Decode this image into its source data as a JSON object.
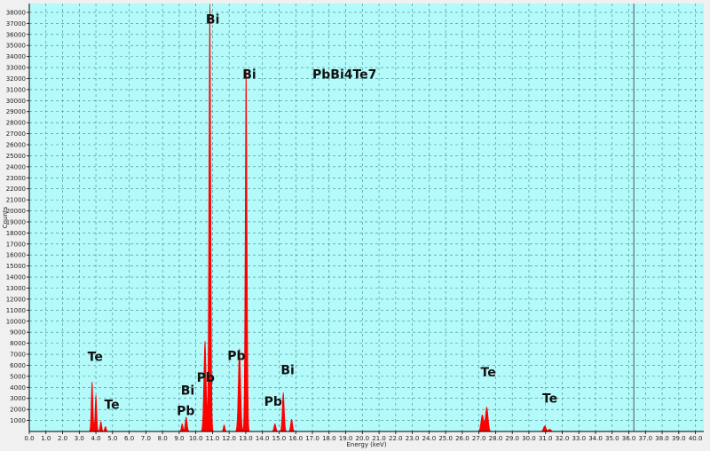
{
  "chart_data": {
    "type": "area",
    "title": "PbBi4Te7",
    "xlabel": "Energy (keV)",
    "ylabel": "Counts",
    "xlim": [
      0,
      40.5
    ],
    "ylim": [
      0,
      38800
    ],
    "grid": true,
    "colors": {
      "plot_bg": "#b4fafa",
      "grid": "#3a8a8a",
      "fill": "#ff0000",
      "outer_bg": "#f0f0f0",
      "cursor": "#555555"
    },
    "x_ticks": [
      "0.0",
      "1.0",
      "2.0",
      "3.0",
      "4.0",
      "5.0",
      "6.0",
      "7.0",
      "8.0",
      "9.0",
      "10.0",
      "11.0",
      "12.0",
      "13.0",
      "14.0",
      "15.0",
      "16.0",
      "17.0",
      "18.0",
      "19.0",
      "20.0",
      "21.0",
      "22.0",
      "23.0",
      "24.0",
      "25.0",
      "26.0",
      "27.0",
      "28.0",
      "29.0",
      "30.0",
      "31.0",
      "32.0",
      "33.0",
      "34.0",
      "35.0",
      "36.0",
      "37.0",
      "38.0",
      "39.0",
      "40.0"
    ],
    "y_ticks": [
      "1000",
      "2000",
      "3000",
      "4000",
      "5000",
      "6000",
      "7000",
      "8000",
      "9000",
      "10000",
      "11000",
      "12000",
      "13000",
      "14000",
      "15000",
      "16000",
      "17000",
      "18000",
      "19000",
      "20000",
      "21000",
      "22000",
      "23000",
      "24000",
      "25000",
      "26000",
      "27000",
      "28000",
      "29000",
      "30000",
      "31000",
      "32000",
      "33000",
      "34000",
      "35000",
      "36000",
      "37000",
      "38000"
    ],
    "cursor_x": 36.3,
    "peaks": [
      {
        "center": 3.77,
        "height": 4500,
        "sigma": 0.05
      },
      {
        "center": 4.0,
        "height": 3300,
        "sigma": 0.05
      },
      {
        "center": 4.3,
        "height": 900,
        "sigma": 0.05
      },
      {
        "center": 4.57,
        "height": 450,
        "sigma": 0.05
      },
      {
        "center": 9.18,
        "height": 700,
        "sigma": 0.05
      },
      {
        "center": 9.42,
        "height": 1300,
        "sigma": 0.06
      },
      {
        "center": 10.55,
        "height": 8200,
        "sigma": 0.07
      },
      {
        "center": 10.84,
        "height": 38800,
        "sigma": 0.055
      },
      {
        "center": 11.7,
        "height": 600,
        "sigma": 0.05
      },
      {
        "center": 12.62,
        "height": 7500,
        "sigma": 0.07
      },
      {
        "center": 13.02,
        "height": 32800,
        "sigma": 0.055
      },
      {
        "center": 14.75,
        "height": 700,
        "sigma": 0.06
      },
      {
        "center": 15.25,
        "height": 3500,
        "sigma": 0.06
      },
      {
        "center": 15.75,
        "height": 1100,
        "sigma": 0.06
      },
      {
        "center": 27.2,
        "height": 1500,
        "sigma": 0.08
      },
      {
        "center": 27.47,
        "height": 2200,
        "sigma": 0.08
      },
      {
        "center": 30.95,
        "height": 500,
        "sigma": 0.08
      },
      {
        "center": 31.25,
        "height": 200,
        "sigma": 0.08
      }
    ],
    "annotations": [
      {
        "text": "Te",
        "x": 3.5,
        "y": 6400
      },
      {
        "text": "Te",
        "x": 4.5,
        "y": 2050
      },
      {
        "text": "Bi",
        "x": 9.1,
        "y": 3350
      },
      {
        "text": "Pb",
        "x": 8.85,
        "y": 1500
      },
      {
        "text": "Pb",
        "x": 10.05,
        "y": 4500
      },
      {
        "text": "Bi",
        "x": 10.6,
        "y": 37000
      },
      {
        "text": "Bi",
        "x": 12.8,
        "y": 32000
      },
      {
        "text": "Pb",
        "x": 11.9,
        "y": 6500
      },
      {
        "text": "Pb",
        "x": 14.1,
        "y": 2350
      },
      {
        "text": "Bi",
        "x": 15.1,
        "y": 5200
      },
      {
        "text": "Te",
        "x": 27.1,
        "y": 5000
      },
      {
        "text": "Te",
        "x": 30.8,
        "y": 2600
      }
    ],
    "title_pos": {
      "x": 17.0,
      "y": 32000
    }
  }
}
